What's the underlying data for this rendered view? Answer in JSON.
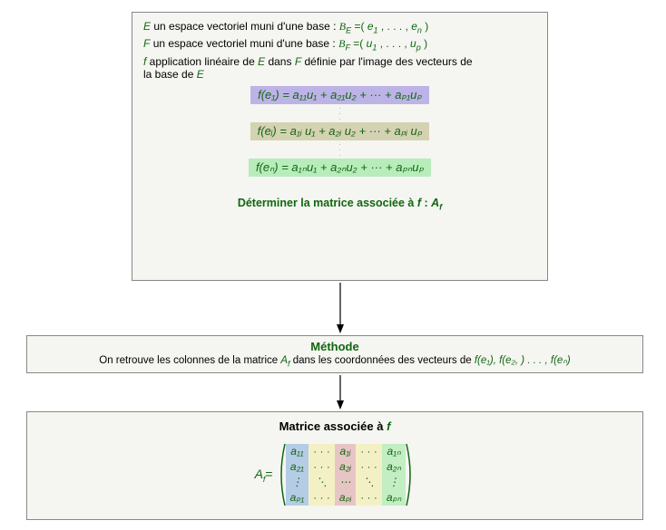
{
  "box1": {
    "line1_pre": "E un espace vectoriel muni d'une base : ",
    "line1_basis": "B",
    "line1_basis_sub": "E",
    "line1_eq": "=(",
    "line1_e1": "e",
    "line1_e1s": "1",
    "line1_mid": ", . . . , ",
    "line1_en": "e",
    "line1_ens": "n",
    "line1_end": ")",
    "line2_pre": "F un espace vectoriel muni d'une base : ",
    "line2_basis": "B",
    "line2_basis_sub": "F",
    "line2_eq": "=(",
    "line2_u1": "u",
    "line2_u1s": "1",
    "line2_mid": ", . . . , ",
    "line2_up": "u",
    "line2_ups": "p",
    "line2_end": ")",
    "line3a": "f application linéaire de E dans F définie par l'image des vecteurs de",
    "line3b": "la base de E",
    "eq1": "f(e₁) = a₁₁u₁ + a₂₁u₂ + ··· + aₚ₁uₚ",
    "eq2": "f(eᵢ) = a₁ᵢ u₁ + a₂ᵢ u₂ + ··· + aₚᵢ uₚ",
    "eq3": "f(eₙ) = a₁ₙu₁ + a₂ₙu₂ + ··· + aₚₙuₚ",
    "vdots": ".\n.\n.",
    "prompt_pre": "Déterminer la matrice associée à ",
    "prompt_f": "f",
    "prompt_colon": ": ",
    "prompt_A": "A",
    "prompt_As": "f"
  },
  "box2": {
    "title": "Méthode",
    "body_pre": "On retrouve les colonnes de la matrice ",
    "body_A": "A",
    "body_As": "f",
    "body_mid": " dans les coordonnées des vecteurs de ",
    "body_f1": "f(e₁), f(e₂, ) . . . , f(eₙ)"
  },
  "box3": {
    "title_pre": "Matrice associée à ",
    "title_f": "f",
    "label_A": "A",
    "label_As": "f",
    "label_eq": "=",
    "matrix": {
      "rows": [
        [
          "a₁₁",
          "· · ·",
          "a₁ᵢ",
          "· · ·",
          "a₁ₙ"
        ],
        [
          "a₂₁",
          "· · ·",
          "a₂ᵢ",
          "· · ·",
          "a₂ₙ"
        ],
        [
          "⋮",
          "⋱",
          "⋯",
          "⋱",
          "⋮"
        ],
        [
          "aₚ₁",
          "· · ·",
          "aₚᵢ",
          "· · ·",
          "aₚₙ"
        ]
      ],
      "col_colors": [
        "#b5cce6",
        "#f4f0c5",
        "#e7c5c5",
        "#f4f0c5",
        "#c3edc3"
      ]
    }
  },
  "colors": {
    "accent": "#116611",
    "box_bg": "#f5f5f1",
    "hl_blue": "#bdb3e7",
    "hl_beige": "#d5d2b3",
    "hl_green": "#b8edbb"
  }
}
